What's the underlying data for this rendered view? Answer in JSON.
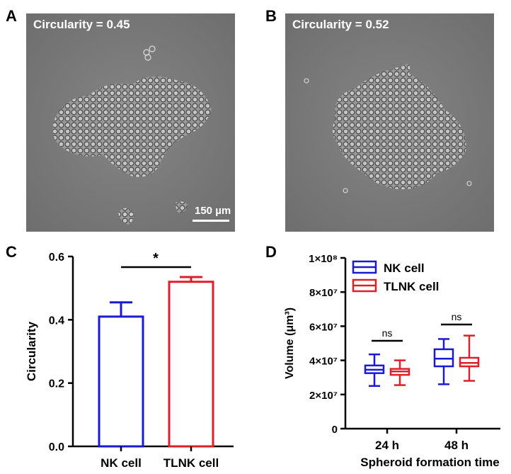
{
  "panels": {
    "A": {
      "letter": "A",
      "label": "Circularity = 0.45",
      "scalebar": "150 µm"
    },
    "B": {
      "letter": "B",
      "label": "Circularity = 0.52"
    },
    "C": {
      "letter": "C"
    },
    "D": {
      "letter": "D"
    }
  },
  "colors": {
    "nk": "#1a1ad6",
    "tlnk": "#e01e28",
    "micro_bg": "#777777"
  },
  "chart_data": [
    {
      "type": "bar",
      "panel": "C",
      "categories": [
        "NK cell",
        "TLNK cell"
      ],
      "values": [
        0.41,
        0.52
      ],
      "error": [
        0.045,
        0.015
      ],
      "ylabel": "Circularity",
      "xlabel": "",
      "ylim": [
        0.0,
        0.6
      ],
      "yticks": [
        "0.0",
        "0.2",
        "0.4",
        "0.6"
      ],
      "significance": "*"
    },
    {
      "type": "box",
      "panel": "D",
      "categories": [
        "24 h",
        "48 h"
      ],
      "xlabel": "Spheroid formation time",
      "ylabel": "Volume (μm³)",
      "ylim": [
        0,
        100000000
      ],
      "yticks": [
        "0",
        "2×10⁷",
        "4×10⁷",
        "6×10⁷",
        "8×10⁷",
        "1×10⁸"
      ],
      "legend": [
        "NK cell",
        "TLNK cell"
      ],
      "legend_position": "top-left",
      "significance": [
        "ns",
        "ns"
      ],
      "series": [
        {
          "name": "NK cell",
          "boxes": [
            {
              "min": 25000000,
              "q1": 32500000,
              "median": 34500000,
              "q3": 37000000,
              "max": 43500000
            },
            {
              "min": 26000000,
              "q1": 36500000,
              "median": 41000000,
              "q3": 46500000,
              "max": 52500000
            }
          ]
        },
        {
          "name": "TLNK cell",
          "boxes": [
            {
              "min": 25500000,
              "q1": 31500000,
              "median": 33500000,
              "q3": 35000000,
              "max": 40000000
            },
            {
              "min": 28000000,
              "q1": 36500000,
              "median": 38500000,
              "q3": 41500000,
              "max": 54500000
            }
          ]
        }
      ]
    }
  ]
}
